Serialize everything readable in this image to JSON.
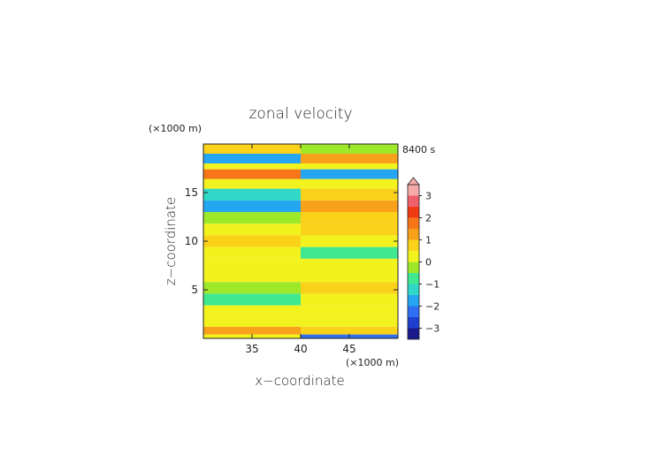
{
  "chart_data": {
    "type": "heatmap",
    "title": "zonal velocity",
    "xlabel": "x−coordinate",
    "ylabel": "z−coordinate",
    "x_unit": "(×1000 m)",
    "y_unit": "(×1000 m)",
    "time_label": "8400 s",
    "xlim": [
      30,
      50
    ],
    "ylim": [
      0,
      20
    ],
    "x_ticks": [
      35,
      40,
      45
    ],
    "y_ticks": [
      5,
      10,
      15
    ],
    "colorbar": {
      "ticks": [
        3,
        2,
        1,
        0,
        -1,
        -2,
        -3
      ],
      "tick_labels": [
        "3",
        "2",
        "1",
        "0",
        "−1",
        "−2",
        "−3"
      ],
      "range": [
        -3.5,
        3.5
      ],
      "colors": [
        "#1a1a8c",
        "#1f3fd0",
        "#2d6ff0",
        "#25a6f0",
        "#30d8c8",
        "#40e890",
        "#9ee82a",
        "#f2f21e",
        "#fad21a",
        "#f7a21a",
        "#f7761a",
        "#f03a14",
        "#f0606a",
        "#f7aaaa"
      ]
    },
    "bands": [
      {
        "z": [
          0.0,
          0.4
        ],
        "left": 0.4,
        "right": -2.2
      },
      {
        "z": [
          0.4,
          1.2
        ],
        "left": 1.0,
        "right": 0.6
      },
      {
        "z": [
          1.2,
          2.4
        ],
        "left": 0.0,
        "right": 0.0
      },
      {
        "z": [
          2.4,
          3.4
        ],
        "left": 0.4,
        "right": 0.0
      },
      {
        "z": [
          3.4,
          4.6
        ],
        "left": -0.7,
        "right": 0.3
      },
      {
        "z": [
          4.6,
          5.8
        ],
        "left": -0.3,
        "right": 0.6
      },
      {
        "z": [
          5.8,
          7.0
        ],
        "left": 0.0,
        "right": 0.0
      },
      {
        "z": [
          7.0,
          8.2
        ],
        "left": 0.4,
        "right": 0.1
      },
      {
        "z": [
          8.2,
          9.4
        ],
        "left": 0.0,
        "right": -0.6
      },
      {
        "z": [
          9.4,
          10.6
        ],
        "left": 0.9,
        "right": 0.2
      },
      {
        "z": [
          10.6,
          11.8
        ],
        "left": 0.3,
        "right": 0.6
      },
      {
        "z": [
          11.8,
          13.0
        ],
        "left": -0.5,
        "right": 0.9
      },
      {
        "z": [
          13.0,
          14.2
        ],
        "left": -1.6,
        "right": 1.0
      },
      {
        "z": [
          14.2,
          15.4
        ],
        "left": -1.2,
        "right": 0.7
      },
      {
        "z": [
          15.4,
          16.4
        ],
        "left": 0.2,
        "right": 0.4
      },
      {
        "z": [
          16.4,
          17.4
        ],
        "left": 1.8,
        "right": -1.7
      },
      {
        "z": [
          17.4,
          18.0
        ],
        "left": 0.4,
        "right": 0.0
      },
      {
        "z": [
          18.0,
          19.0
        ],
        "left": -1.6,
        "right": 1.2
      },
      {
        "z": [
          19.0,
          20.0
        ],
        "left": 0.5,
        "right": -0.3
      }
    ]
  }
}
